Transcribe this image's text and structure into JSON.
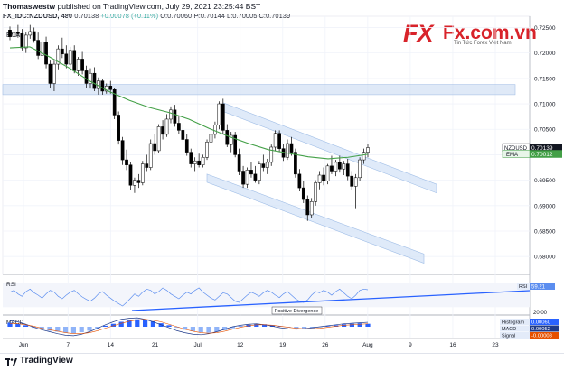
{
  "header": {
    "author": "Thomaswestw",
    "published": "published on TradingView.com, July 29, 2021 23:25:44 BST",
    "symbol": "FX_IDC:NZDUSD, 480",
    "last": "0.70138",
    "change": "+0.00078 (+0.11%)",
    "open": "O:0.70060",
    "high": "H:0.70144",
    "low": "L:0.70005",
    "close": "C:0.70139",
    "ema_label": "EMA"
  },
  "logo": {
    "brand": "FXNFx.com.vn",
    "fx_mark": "FX",
    "domain": "Fx.com.vn",
    "tagline": "Tin Tức Forex Việt Nam"
  },
  "footer": {
    "brand": "TradingView"
  },
  "chart_data": [
    {
      "type": "candlestick",
      "title": "NZDUSD",
      "ylim": [
        0.6772,
        0.7265
      ],
      "yticks": [
        0.725,
        0.72,
        0.715,
        0.71,
        0.705,
        0.7,
        0.695,
        0.69,
        0.685,
        0.68
      ],
      "ytick_labels": [
        "0.72500",
        "0.72000",
        "0.71500",
        "0.71000",
        "0.70500",
        "0.70000",
        "0.69500",
        "0.69000",
        "0.68500",
        "0.68000"
      ],
      "xtick_labels": [
        "Jun",
        "7",
        "14",
        "21",
        "Jul",
        "12",
        "19",
        "26",
        "Aug",
        "9",
        "16",
        "23"
      ],
      "x_index_range": [
        0,
        122
      ],
      "xtick_index": [
        8,
        30,
        51,
        73,
        94,
        115,
        136,
        157,
        178,
        199,
        220,
        241
      ],
      "grid": true,
      "candles": [
        [
          0.7245,
          0.7252,
          0.7225,
          0.7232
        ],
        [
          0.7232,
          0.7248,
          0.7222,
          0.724
        ],
        [
          0.724,
          0.7255,
          0.723,
          0.7238
        ],
        [
          0.7238,
          0.7247,
          0.7205,
          0.721
        ],
        [
          0.721,
          0.724,
          0.72,
          0.7235
        ],
        [
          0.7235,
          0.7255,
          0.7228,
          0.7242
        ],
        [
          0.7242,
          0.725,
          0.722,
          0.7225
        ],
        [
          0.7225,
          0.724,
          0.7188,
          0.7195
        ],
        [
          0.7195,
          0.7228,
          0.718,
          0.7222
        ],
        [
          0.7222,
          0.7232,
          0.717,
          0.7178
        ],
        [
          0.7178,
          0.7185,
          0.7132,
          0.714
        ],
        [
          0.714,
          0.7185,
          0.7125,
          0.7178
        ],
        [
          0.7178,
          0.7215,
          0.7168,
          0.7208
        ],
        [
          0.7208,
          0.723,
          0.719,
          0.7198
        ],
        [
          0.7198,
          0.7215,
          0.717,
          0.7178
        ],
        [
          0.7178,
          0.7212,
          0.7165,
          0.7205
        ],
        [
          0.7205,
          0.7215,
          0.716,
          0.7165
        ],
        [
          0.7165,
          0.7192,
          0.7155,
          0.7188
        ],
        [
          0.7188,
          0.7202,
          0.7158,
          0.7165
        ],
        [
          0.7165,
          0.7175,
          0.7132,
          0.714
        ],
        [
          0.714,
          0.717,
          0.713,
          0.716
        ],
        [
          0.716,
          0.7172,
          0.7125,
          0.713
        ],
        [
          0.713,
          0.7152,
          0.7118,
          0.7145
        ],
        [
          0.7145,
          0.7148,
          0.7118,
          0.7125
        ],
        [
          0.7125,
          0.714,
          0.712,
          0.7135
        ],
        [
          0.7135,
          0.7145,
          0.712,
          0.7128
        ],
        [
          0.7128,
          0.7132,
          0.707,
          0.7078
        ],
        [
          0.7078,
          0.7085,
          0.702,
          0.7028
        ],
        [
          0.7028,
          0.7035,
          0.698,
          0.699
        ],
        [
          0.699,
          0.701,
          0.697,
          0.698
        ],
        [
          0.698,
          0.6985,
          0.693,
          0.694
        ],
        [
          0.694,
          0.6955,
          0.6925,
          0.695
        ],
        [
          0.695,
          0.6962,
          0.6935,
          0.6945
        ],
        [
          0.6945,
          0.6988,
          0.694,
          0.6982
        ],
        [
          0.6982,
          0.7,
          0.6968,
          0.6975
        ],
        [
          0.6975,
          0.703,
          0.697,
          0.7022
        ],
        [
          0.7022,
          0.704,
          0.7,
          0.7008
        ],
        [
          0.7008,
          0.706,
          0.7003,
          0.7055
        ],
        [
          0.7055,
          0.7068,
          0.703,
          0.704
        ],
        [
          0.704,
          0.708,
          0.7035,
          0.707
        ],
        [
          0.707,
          0.7095,
          0.7062,
          0.7088
        ],
        [
          0.7088,
          0.7098,
          0.7055,
          0.7062
        ],
        [
          0.7062,
          0.7075,
          0.704,
          0.7048
        ],
        [
          0.7048,
          0.706,
          0.7025,
          0.703
        ],
        [
          0.703,
          0.704,
          0.6998,
          0.7005
        ],
        [
          0.7005,
          0.7012,
          0.6975,
          0.6982
        ],
        [
          0.6982,
          0.6995,
          0.6968,
          0.6988
        ],
        [
          0.6988,
          0.7002,
          0.6975,
          0.698
        ],
        [
          0.698,
          0.7,
          0.6975,
          0.6995
        ],
        [
          0.6995,
          0.703,
          0.699,
          0.7025
        ],
        [
          0.7025,
          0.7048,
          0.7015,
          0.704
        ],
        [
          0.704,
          0.7065,
          0.7032,
          0.7058
        ],
        [
          0.7058,
          0.7105,
          0.705,
          0.71
        ],
        [
          0.71,
          0.711,
          0.704,
          0.7048
        ],
        [
          0.7048,
          0.706,
          0.7015,
          0.702
        ],
        [
          0.702,
          0.7045,
          0.7005,
          0.7038
        ],
        [
          0.7038,
          0.7045,
          0.6995,
          0.7
        ],
        [
          0.7,
          0.7012,
          0.696,
          0.6968
        ],
        [
          0.6968,
          0.6978,
          0.6935,
          0.6942
        ],
        [
          0.6942,
          0.6975,
          0.6935,
          0.697
        ],
        [
          0.697,
          0.6985,
          0.6955,
          0.6962
        ],
        [
          0.6962,
          0.6978,
          0.6945,
          0.695
        ],
        [
          0.695,
          0.6988,
          0.6942,
          0.6982
        ],
        [
          0.6982,
          0.7,
          0.6968,
          0.6975
        ],
        [
          0.6975,
          0.6992,
          0.6962,
          0.6985
        ],
        [
          0.6985,
          0.702,
          0.6978,
          0.7015
        ],
        [
          0.7015,
          0.7048,
          0.7008,
          0.7042
        ],
        [
          0.7042,
          0.7048,
          0.7005,
          0.7012
        ],
        [
          0.7012,
          0.7022,
          0.6988,
          0.6995
        ],
        [
          0.6995,
          0.703,
          0.699,
          0.7022
        ],
        [
          0.7022,
          0.7035,
          0.6998,
          0.7005
        ],
        [
          0.7005,
          0.7012,
          0.6955,
          0.6962
        ],
        [
          0.6962,
          0.6972,
          0.6928,
          0.6935
        ],
        [
          0.6935,
          0.6948,
          0.6905,
          0.6912
        ],
        [
          0.6912,
          0.692,
          0.687,
          0.6882
        ],
        [
          0.6882,
          0.6915,
          0.6875,
          0.6908
        ],
        [
          0.6908,
          0.695,
          0.69,
          0.6945
        ],
        [
          0.6945,
          0.6968,
          0.6932,
          0.696
        ],
        [
          0.696,
          0.6975,
          0.694,
          0.6948
        ],
        [
          0.6948,
          0.6982,
          0.6942,
          0.6978
        ],
        [
          0.6978,
          0.6998,
          0.6962,
          0.6968
        ],
        [
          0.6968,
          0.699,
          0.6958,
          0.6985
        ],
        [
          0.6985,
          0.6998,
          0.6965,
          0.6972
        ],
        [
          0.6972,
          0.6988,
          0.696,
          0.6982
        ],
        [
          0.6982,
          0.6992,
          0.695,
          0.6958
        ],
        [
          0.6958,
          0.6968,
          0.693,
          0.6938
        ],
        [
          0.6938,
          0.6962,
          0.6895,
          0.6955
        ],
        [
          0.6955,
          0.6995,
          0.6948,
          0.699
        ],
        [
          0.699,
          0.7012,
          0.6982,
          0.7005
        ],
        [
          0.7005,
          0.7022,
          0.6995,
          0.7014
        ]
      ],
      "ema": [
        [
          0,
          0.721
        ],
        [
          10,
          0.7212
        ],
        [
          20,
          0.7192
        ],
        [
          30,
          0.717
        ],
        [
          40,
          0.7145
        ],
        [
          50,
          0.7124
        ],
        [
          60,
          0.7107
        ],
        [
          70,
          0.7093
        ],
        [
          80,
          0.7083
        ],
        [
          90,
          0.707
        ],
        [
          100,
          0.7052
        ],
        [
          110,
          0.7036
        ],
        [
          120,
          0.7022
        ],
        [
          130,
          0.701
        ],
        [
          140,
          0.7003
        ],
        [
          150,
          0.6996
        ],
        [
          160,
          0.6992
        ],
        [
          170,
          0.6995
        ],
        [
          180,
          0.7001
        ]
      ],
      "horizontal_zone": [
        0.7138,
        0.7118
      ],
      "channel_upper": {
        "start": [
          0.7102,
          0.7085
        ],
        "end": [
          0.6942,
          0.6925
        ]
      },
      "channel_lower": {
        "start": [
          0.6962,
          0.6946
        ],
        "end": [
          0.6805,
          0.6787
        ]
      },
      "price_label": {
        "name": "NZDUSD",
        "value": "0.70139"
      },
      "ema_label": {
        "name": "EMA",
        "value": "0.70012"
      },
      "colors": {
        "up": "#ffffff",
        "down": "#000000",
        "ema": "#43a047",
        "zone": "#c5d7f0",
        "channel": "#d4e3f7",
        "trend": "#2962ff"
      }
    },
    {
      "type": "line",
      "title": "RSI",
      "ylim": [
        20,
        80
      ],
      "yticks": [
        20.0
      ],
      "ytick_labels": [
        "20.00"
      ],
      "value_label": "59.21",
      "annotation": "Positive Divergence",
      "values": [
        55,
        58,
        52,
        48,
        56,
        60,
        54,
        50,
        45,
        52,
        58,
        55,
        48,
        44,
        50,
        55,
        58,
        52,
        47,
        43,
        40,
        45,
        52,
        56,
        50,
        45,
        40,
        36,
        32,
        38,
        45,
        52,
        48,
        55,
        60,
        58,
        52,
        56,
        62,
        58,
        52,
        48,
        44,
        50,
        55,
        52,
        58,
        62,
        55,
        50,
        45,
        42,
        48,
        54,
        52,
        46,
        40,
        38,
        44,
        50,
        55,
        52,
        48,
        54,
        58,
        55,
        50,
        46,
        52,
        56,
        50,
        44,
        40,
        38,
        42,
        50,
        56,
        54,
        58,
        55,
        50,
        56,
        60,
        54,
        48,
        44,
        50,
        58,
        60,
        59
      ]
    },
    {
      "type": "bar",
      "title": "MACD",
      "series_labels": [
        {
          "name": "Histogram",
          "value": "0.00060"
        },
        {
          "name": "MACD",
          "value": "0.00052"
        },
        {
          "name": "Signal",
          "value": "-0.00008"
        }
      ],
      "histogram": [
        0.8,
        0.6,
        0.3,
        -0.2,
        -0.5,
        -0.8,
        -1.0,
        -1.2,
        -1.3,
        -1.1,
        -0.8,
        -0.4,
        0.2,
        0.6,
        1.0,
        1.3,
        1.5,
        1.4,
        1.1,
        0.7,
        0.3,
        -0.2,
        -0.6,
        -0.9,
        -1.1,
        -1.2,
        -1.0,
        -0.7,
        -0.3,
        0.1,
        0.4,
        0.6,
        0.5,
        0.3,
        0.1,
        -0.1,
        -0.3,
        -0.4,
        -0.3,
        -0.1,
        0.1,
        0.3,
        0.5,
        0.6,
        0.7,
        0.6
      ],
      "macd_line": [
        1.2,
        1.0,
        0.5,
        -0.1,
        -0.6,
        -1.0,
        -1.4,
        -1.7,
        -1.8,
        -1.5,
        -1.0,
        -0.3,
        0.4,
        1.0,
        1.5,
        1.7,
        1.8,
        1.5,
        1.0,
        0.4,
        -0.2,
        -0.8,
        -1.2,
        -1.5,
        -1.6,
        -1.4,
        -1.0,
        -0.5,
        0.0,
        0.3,
        0.5,
        0.6,
        0.4,
        0.1,
        -0.2,
        -0.4,
        -0.5,
        -0.4,
        -0.2,
        0.0,
        0.2,
        0.4,
        0.6,
        0.7,
        0.8,
        0.9
      ],
      "signal_line": [
        0.6,
        0.6,
        0.4,
        0.1,
        -0.3,
        -0.6,
        -0.9,
        -1.2,
        -1.4,
        -1.4,
        -1.2,
        -0.8,
        -0.3,
        0.2,
        0.7,
        1.1,
        1.4,
        1.5,
        1.3,
        1.0,
        0.5,
        0.0,
        -0.5,
        -0.9,
        -1.2,
        -1.3,
        -1.2,
        -0.9,
        -0.5,
        -0.1,
        0.2,
        0.4,
        0.4,
        0.3,
        0.1,
        -0.1,
        -0.3,
        -0.4,
        -0.4,
        -0.3,
        -0.1,
        0.1,
        0.3,
        0.4,
        0.5,
        0.6
      ]
    }
  ]
}
